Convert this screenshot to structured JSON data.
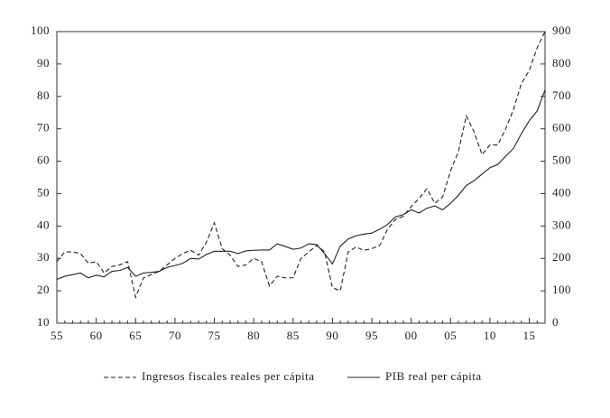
{
  "chart_data": {
    "type": "line",
    "categories": [
      "55",
      null,
      null,
      null,
      null,
      "60",
      null,
      null,
      null,
      null,
      "65",
      null,
      null,
      null,
      null,
      "70",
      null,
      null,
      null,
      null,
      "75",
      null,
      null,
      null,
      null,
      "80",
      null,
      null,
      null,
      null,
      "85",
      null,
      null,
      null,
      null,
      "90",
      null,
      null,
      null,
      null,
      "95",
      null,
      null,
      null,
      null,
      "00",
      null,
      null,
      null,
      null,
      "05",
      null,
      null,
      null,
      null,
      "10",
      null,
      null,
      null,
      null,
      "15",
      null,
      null
    ],
    "series": [
      {
        "name": "Ingresos fiscales reales per cápita",
        "color": "#222222",
        "style": "dashed",
        "axis": "y",
        "values": [
          29,
          32,
          32,
          31.5,
          28.5,
          29,
          25.5,
          27.5,
          28,
          29,
          18,
          24,
          25,
          26,
          28,
          30,
          31.5,
          32.5,
          31,
          35,
          41,
          33,
          31,
          27.5,
          28,
          30,
          29,
          21.5,
          24.5,
          24,
          24,
          30,
          32,
          34,
          32,
          21,
          20,
          32,
          33.5,
          32.5,
          33,
          34,
          39,
          42,
          43,
          46,
          48.5,
          51.5,
          47,
          49,
          57,
          63,
          74,
          69,
          62,
          65,
          65,
          70,
          76,
          84,
          88,
          95,
          100
        ]
      },
      {
        "name": "PIB real per cápita",
        "color": "#222222",
        "style": "solid",
        "axis": "y2",
        "values": [
          135,
          145,
          150,
          155,
          140,
          148,
          143,
          160,
          163,
          172,
          145,
          155,
          157,
          160,
          172,
          178,
          185,
          200,
          198,
          212,
          222,
          222,
          222,
          215,
          223,
          225,
          226,
          226,
          245,
          237,
          228,
          232,
          245,
          243,
          215,
          183,
          238,
          260,
          270,
          275,
          278,
          290,
          305,
          328,
          335,
          350,
          340,
          355,
          362,
          350,
          370,
          395,
          425,
          440,
          460,
          480,
          490,
          515,
          540,
          585,
          625,
          655,
          720
        ]
      }
    ],
    "ylim": [
      10,
      100
    ],
    "yticks": [
      10,
      20,
      30,
      40,
      50,
      60,
      70,
      80,
      90,
      100
    ],
    "y2lim": [
      0,
      900
    ],
    "y2ticks": [
      0,
      100,
      200,
      300,
      400,
      500,
      600,
      700,
      800,
      900
    ],
    "grid": false,
    "legend": "bottom"
  }
}
